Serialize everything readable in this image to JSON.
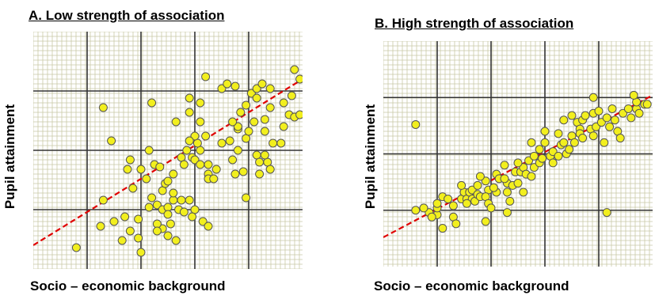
{
  "chart_data": [
    {
      "type": "scatter",
      "title": "A. Low strength of association",
      "xlabel": "Socio – economic background",
      "ylabel": "Pupil attainment",
      "xlim": [
        0,
        10
      ],
      "ylim": [
        0,
        10
      ],
      "grid": true,
      "trendline": {
        "style": "dashed",
        "color": "#e00000",
        "points": [
          [
            0,
            1.0
          ],
          [
            10,
            8.0
          ]
        ]
      },
      "points": [
        [
          1.6,
          0.9
        ],
        [
          2.5,
          1.8
        ],
        [
          2.6,
          2.9
        ],
        [
          2.9,
          5.4
        ],
        [
          3.3,
          1.2
        ],
        [
          3.0,
          2.0
        ],
        [
          3.4,
          2.2
        ],
        [
          3.6,
          1.6
        ],
        [
          4.0,
          0.7
        ],
        [
          3.9,
          1.3
        ],
        [
          3.9,
          2.1
        ],
        [
          3.7,
          3.4
        ],
        [
          3.5,
          4.2
        ],
        [
          3.6,
          4.6
        ],
        [
          4.5,
          4.4
        ],
        [
          4.0,
          4.2
        ],
        [
          4.2,
          3.8
        ],
        [
          4.4,
          3.0
        ],
        [
          4.6,
          2.7
        ],
        [
          4.3,
          2.6
        ],
        [
          4.8,
          3.3
        ],
        [
          4.8,
          2.5
        ],
        [
          5.0,
          2.6
        ],
        [
          5.2,
          2.9
        ],
        [
          4.8,
          1.7
        ],
        [
          5.1,
          1.9
        ],
        [
          5.0,
          2.3
        ],
        [
          5.4,
          2.5
        ],
        [
          5.5,
          2.9
        ],
        [
          5.2,
          3.2
        ],
        [
          4.6,
          1.9
        ],
        [
          5.0,
          1.4
        ],
        [
          5.3,
          1.2
        ],
        [
          4.6,
          1.6
        ],
        [
          5.8,
          2.9
        ],
        [
          5.6,
          2.4
        ],
        [
          6.0,
          2.5
        ],
        [
          5.9,
          2.2
        ],
        [
          6.3,
          2.0
        ],
        [
          6.5,
          1.8
        ],
        [
          4.9,
          3.6
        ],
        [
          5.0,
          3.7
        ],
        [
          5.2,
          4.0
        ],
        [
          4.7,
          4.3
        ],
        [
          5.5,
          4.7
        ],
        [
          4.3,
          5.0
        ],
        [
          5.3,
          6.2
        ],
        [
          5.7,
          5.0
        ],
        [
          5.6,
          4.4
        ],
        [
          5.9,
          4.7
        ],
        [
          6.0,
          4.6
        ],
        [
          6.2,
          4.4
        ],
        [
          6.2,
          5.0
        ],
        [
          6.1,
          5.3
        ],
        [
          5.8,
          6.6
        ],
        [
          6.2,
          6.2
        ],
        [
          6.0,
          5.6
        ],
        [
          5.8,
          5.4
        ],
        [
          6.4,
          5.6
        ],
        [
          6.5,
          4.0
        ],
        [
          6.5,
          3.8
        ],
        [
          6.7,
          3.8
        ],
        [
          6.5,
          4.4
        ],
        [
          7.3,
          5.4
        ],
        [
          7.0,
          5.3
        ],
        [
          6.8,
          4.2
        ],
        [
          7.4,
          4.6
        ],
        [
          7.5,
          4.0
        ],
        [
          7.8,
          4.1
        ],
        [
          7.9,
          5.5
        ],
        [
          7.6,
          5.0
        ],
        [
          7.6,
          5.9
        ],
        [
          8.0,
          5.8
        ],
        [
          8.3,
          4.8
        ],
        [
          8.4,
          4.5
        ],
        [
          8.7,
          4.5
        ],
        [
          8.8,
          4.2
        ],
        [
          8.4,
          4.0
        ],
        [
          8.6,
          4.8
        ],
        [
          8.6,
          5.8
        ],
        [
          8.6,
          6.3
        ],
        [
          8.8,
          6.8
        ],
        [
          8.9,
          5.3
        ],
        [
          9.2,
          5.3
        ],
        [
          9.5,
          6.5
        ],
        [
          9.7,
          6.4
        ],
        [
          9.6,
          7.3
        ],
        [
          9.9,
          8.0
        ],
        [
          9.3,
          6.0
        ],
        [
          7.0,
          7.6
        ],
        [
          7.2,
          7.8
        ],
        [
          7.5,
          7.7
        ],
        [
          7.7,
          6.6
        ],
        [
          7.6,
          6.0
        ],
        [
          7.9,
          6.9
        ],
        [
          8.2,
          6.2
        ],
        [
          7.4,
          6.2
        ],
        [
          8.1,
          7.4
        ],
        [
          8.3,
          7.6
        ],
        [
          8.3,
          7.2
        ],
        [
          8.5,
          7.8
        ],
        [
          8.8,
          7.6
        ],
        [
          9.3,
          7.0
        ],
        [
          7.9,
          3.0
        ],
        [
          6.2,
          7.0
        ],
        [
          6.4,
          8.1
        ],
        [
          5.8,
          7.2
        ],
        [
          4.4,
          7.0
        ],
        [
          2.6,
          6.8
        ],
        [
          9.7,
          8.4
        ],
        [
          9.9,
          6.5
        ]
      ]
    },
    {
      "type": "scatter",
      "title": "B. High strength of association",
      "xlabel": "Socio – economic background",
      "ylabel": "Pupil attainment",
      "xlim": [
        0,
        10
      ],
      "ylim": [
        0,
        10
      ],
      "grid": true,
      "trendline": {
        "style": "dashed",
        "color": "#e00000",
        "points": [
          [
            0,
            1.3
          ],
          [
            10,
            7.6
          ]
        ]
      },
      "points": [
        [
          1.7,
          2.4
        ],
        [
          2.0,
          2.3
        ],
        [
          2.0,
          2.6
        ],
        [
          2.2,
          3.1
        ],
        [
          2.6,
          2.2
        ],
        [
          2.6,
          2.7
        ],
        [
          2.7,
          1.9
        ],
        [
          2.9,
          3.0
        ],
        [
          3.0,
          3.3
        ],
        [
          2.9,
          3.6
        ],
        [
          3.1,
          3.0
        ],
        [
          3.2,
          3.3
        ],
        [
          3.3,
          3.0
        ],
        [
          3.1,
          2.8
        ],
        [
          3.4,
          2.9
        ],
        [
          3.3,
          3.4
        ],
        [
          3.5,
          3.2
        ],
        [
          3.6,
          3.1
        ],
        [
          3.5,
          3.6
        ],
        [
          3.8,
          3.8
        ],
        [
          3.6,
          4.0
        ],
        [
          3.9,
          3.4
        ],
        [
          3.8,
          3.1
        ],
        [
          4.2,
          3.3
        ],
        [
          3.9,
          2.8
        ],
        [
          4.0,
          2.6
        ],
        [
          4.1,
          3.5
        ],
        [
          4.2,
          4.1
        ],
        [
          4.3,
          3.9
        ],
        [
          4.6,
          3.7
        ],
        [
          4.6,
          3.3
        ],
        [
          4.7,
          2.9
        ],
        [
          4.8,
          3.6
        ],
        [
          4.5,
          3.9
        ],
        [
          4.9,
          4.2
        ],
        [
          5.0,
          3.7
        ],
        [
          5.1,
          4.2
        ],
        [
          5.2,
          4.4
        ],
        [
          5.0,
          4.6
        ],
        [
          5.3,
          4.1
        ],
        [
          5.5,
          4.0
        ],
        [
          5.4,
          4.7
        ],
        [
          5.6,
          4.9
        ],
        [
          5.6,
          4.4
        ],
        [
          5.8,
          4.6
        ],
        [
          5.8,
          5.2
        ],
        [
          5.9,
          4.8
        ],
        [
          6.2,
          4.9
        ],
        [
          6.0,
          5.5
        ],
        [
          6.3,
          5.1
        ],
        [
          6.3,
          4.6
        ],
        [
          6.5,
          4.9
        ],
        [
          6.6,
          5.4
        ],
        [
          6.5,
          5.9
        ],
        [
          6.7,
          5.5
        ],
        [
          6.8,
          5.0
        ],
        [
          6.9,
          5.2
        ],
        [
          7.0,
          5.8
        ],
        [
          7.1,
          5.5
        ],
        [
          7.2,
          6.4
        ],
        [
          7.3,
          6.1
        ],
        [
          7.4,
          6.5
        ],
        [
          7.3,
          5.9
        ],
        [
          7.5,
          6.7
        ],
        [
          7.4,
          5.7
        ],
        [
          7.7,
          6.1
        ],
        [
          7.8,
          5.8
        ],
        [
          7.9,
          6.2
        ],
        [
          7.8,
          6.8
        ],
        [
          8.1,
          6.4
        ],
        [
          8.2,
          5.5
        ],
        [
          8.0,
          6.9
        ],
        [
          8.3,
          6.6
        ],
        [
          8.5,
          7.0
        ],
        [
          8.6,
          6.5
        ],
        [
          8.4,
          6.2
        ],
        [
          8.7,
          6.0
        ],
        [
          8.8,
          5.7
        ],
        [
          8.9,
          6.8
        ],
        [
          9.2,
          6.6
        ],
        [
          9.1,
          7.0
        ],
        [
          9.4,
          7.0
        ],
        [
          9.5,
          6.8
        ],
        [
          9.4,
          7.3
        ],
        [
          9.3,
          7.6
        ],
        [
          9.7,
          7.2
        ],
        [
          9.8,
          7.2
        ],
        [
          7.8,
          7.5
        ],
        [
          7.0,
          6.7
        ],
        [
          6.7,
          6.5
        ],
        [
          6.0,
          6.0
        ],
        [
          5.5,
          5.5
        ],
        [
          4.5,
          4.5
        ],
        [
          2.4,
          3.0
        ],
        [
          2.0,
          2.8
        ],
        [
          1.5,
          2.6
        ],
        [
          1.2,
          2.5
        ],
        [
          1.8,
          2.2
        ],
        [
          2.2,
          1.7
        ],
        [
          3.8,
          2.0
        ],
        [
          4.6,
          2.4
        ],
        [
          1.2,
          6.3
        ],
        [
          5.2,
          3.3
        ],
        [
          8.3,
          2.4
        ]
      ]
    }
  ]
}
